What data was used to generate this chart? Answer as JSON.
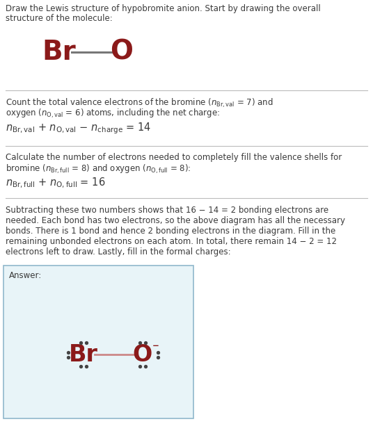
{
  "atom_color": "#8B1A1A",
  "text_color": "#3a3a3a",
  "bg_color": "#ffffff",
  "answer_bg": "#e8f4f8",
  "answer_border": "#90b8cc",
  "bond_color": "#cc8888",
  "dot_color": "#444444",
  "line_color": "#888888",
  "intro_line1": "Draw the Lewis structure of hypobromite anion. Start by drawing the overall",
  "intro_line2": "structure of the molecule:",
  "s1_line1": "Count the total valence electrons of the bromine (",
  "s1_line2": " = 7) and",
  "s1_line3": "oxygen (",
  "s1_line4": " = 6) atoms, including the net charge:",
  "s2_line1": "Calculate the number of electrons needed to completely fill the valence shells for",
  "s2_line2": "bromine (",
  "s2_line3": " = 8) and oxygen (",
  "s2_line4": " = 8):",
  "s3_lines": [
    "Subtracting these two numbers shows that 16 − 14 = 2 bonding electrons are",
    "needed. Each bond has two electrons, so the above diagram has all the necessary",
    "bonds. There is 1 bond and hence 2 bonding electrons in the diagram. Fill in the",
    "remaining unbonded electrons on each atom. In total, there remain 14 − 2 = 12",
    "electrons left to draw. Lastly, fill in the formal charges:"
  ],
  "answer_label": "Answer:"
}
